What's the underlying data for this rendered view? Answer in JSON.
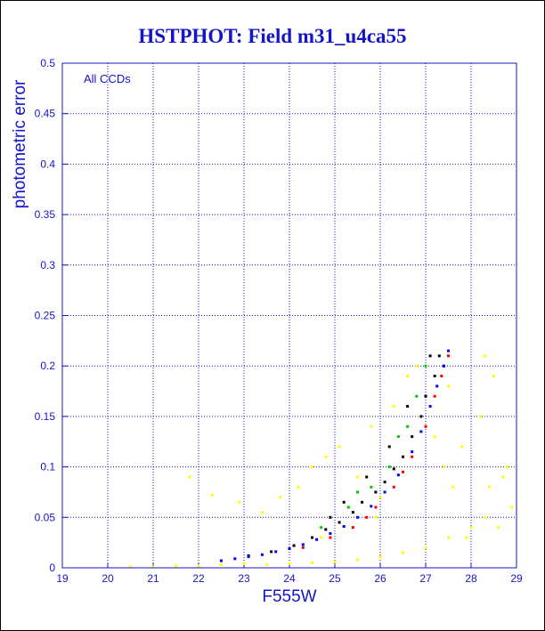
{
  "chart_data": {
    "type": "scatter",
    "title": "HSTPHOT: Field m31_u4ca55",
    "xlabel": "F555W",
    "ylabel": "photometric error",
    "annotation": "All CCDs",
    "xlim": [
      19,
      29
    ],
    "ylim": [
      0,
      0.5
    ],
    "grid": true,
    "x_ticks": [
      "19",
      "20",
      "21",
      "22",
      "23",
      "24",
      "25",
      "26",
      "27",
      "28",
      "29"
    ],
    "y_ticks": [
      "0",
      "0.05",
      "0.1",
      "0.15",
      "0.2",
      "0.25",
      "0.3",
      "0.35",
      "0.4",
      "0.45",
      "0.5"
    ],
    "series": [
      {
        "color": "#ffff00",
        "points": [
          [
            21.8,
            0.09
          ],
          [
            22.3,
            0.072
          ],
          [
            22.9,
            0.065
          ],
          [
            23.4,
            0.055
          ],
          [
            23.8,
            0.07
          ],
          [
            24.2,
            0.08
          ],
          [
            24.5,
            0.1
          ],
          [
            24.8,
            0.11
          ],
          [
            25.1,
            0.12
          ],
          [
            25.3,
            0.06
          ],
          [
            25.5,
            0.09
          ],
          [
            25.8,
            0.14
          ],
          [
            26.0,
            0.07
          ],
          [
            26.3,
            0.16
          ],
          [
            26.6,
            0.19
          ],
          [
            26.8,
            0.2
          ],
          [
            27.2,
            0.13
          ],
          [
            27.5,
            0.18
          ],
          [
            28.3,
            0.21
          ],
          [
            28.5,
            0.19
          ],
          [
            28.2,
            0.15
          ],
          [
            28.7,
            0.09
          ],
          [
            28.9,
            0.06
          ],
          [
            28.6,
            0.04
          ],
          [
            27.9,
            0.03
          ],
          [
            27.6,
            0.08
          ],
          [
            27.4,
            0.1
          ],
          [
            23.0,
            0.004
          ],
          [
            23.5,
            0.003
          ],
          [
            24.0,
            0.004
          ],
          [
            24.5,
            0.005
          ],
          [
            25.0,
            0.006
          ],
          [
            25.5,
            0.008
          ],
          [
            26.0,
            0.011
          ],
          [
            26.5,
            0.015
          ],
          [
            27.0,
            0.02
          ],
          [
            27.5,
            0.03
          ],
          [
            28.0,
            0.04
          ],
          [
            28.3,
            0.05
          ],
          [
            22.0,
            0.002
          ],
          [
            22.5,
            0.003
          ],
          [
            21.5,
            0.002
          ],
          [
            20.5,
            0.001
          ],
          [
            21.0,
            0.001
          ],
          [
            24.7,
            0.03
          ],
          [
            25.9,
            0.05
          ],
          [
            26.9,
            0.15
          ],
          [
            27.8,
            0.12
          ],
          [
            28.4,
            0.08
          ],
          [
            28.8,
            0.1
          ]
        ]
      },
      {
        "color": "#000000",
        "points": [
          [
            23.1,
            0.012
          ],
          [
            23.6,
            0.016
          ],
          [
            24.1,
            0.022
          ],
          [
            24.5,
            0.03
          ],
          [
            24.8,
            0.038
          ],
          [
            25.1,
            0.045
          ],
          [
            25.4,
            0.055
          ],
          [
            25.6,
            0.065
          ],
          [
            25.9,
            0.075
          ],
          [
            26.1,
            0.085
          ],
          [
            26.3,
            0.098
          ],
          [
            26.5,
            0.11
          ],
          [
            26.7,
            0.13
          ],
          [
            26.9,
            0.15
          ],
          [
            27.0,
            0.17
          ],
          [
            27.2,
            0.19
          ],
          [
            27.3,
            0.21
          ],
          [
            27.4,
            0.2
          ],
          [
            26.2,
            0.12
          ],
          [
            26.6,
            0.16
          ],
          [
            25.7,
            0.09
          ],
          [
            25.2,
            0.065
          ],
          [
            24.9,
            0.05
          ],
          [
            27.1,
            0.21
          ]
        ]
      },
      {
        "color": "#00c800",
        "points": [
          [
            24.7,
            0.04
          ],
          [
            25.3,
            0.06
          ],
          [
            25.8,
            0.08
          ],
          [
            26.2,
            0.1
          ],
          [
            26.6,
            0.14
          ],
          [
            26.8,
            0.17
          ],
          [
            27.0,
            0.2
          ],
          [
            25.5,
            0.075
          ],
          [
            26.4,
            0.13
          ]
        ]
      },
      {
        "color": "#ff0000",
        "points": [
          [
            24.3,
            0.02
          ],
          [
            24.9,
            0.03
          ],
          [
            25.4,
            0.04
          ],
          [
            25.9,
            0.06
          ],
          [
            26.3,
            0.08
          ],
          [
            26.7,
            0.11
          ],
          [
            27.0,
            0.14
          ],
          [
            27.2,
            0.17
          ],
          [
            27.35,
            0.19
          ],
          [
            27.5,
            0.21
          ],
          [
            26.5,
            0.095
          ],
          [
            25.7,
            0.05
          ]
        ]
      },
      {
        "color": "#0000ff",
        "points": [
          [
            22.5,
            0.007
          ],
          [
            22.8,
            0.009
          ],
          [
            23.1,
            0.011
          ],
          [
            23.4,
            0.013
          ],
          [
            23.7,
            0.016
          ],
          [
            24.0,
            0.019
          ],
          [
            24.3,
            0.023
          ],
          [
            24.6,
            0.028
          ],
          [
            24.9,
            0.034
          ],
          [
            25.2,
            0.041
          ],
          [
            25.5,
            0.05
          ],
          [
            25.8,
            0.061
          ],
          [
            26.1,
            0.075
          ],
          [
            26.4,
            0.092
          ],
          [
            26.7,
            0.115
          ],
          [
            26.9,
            0.135
          ],
          [
            27.1,
            0.16
          ],
          [
            27.25,
            0.18
          ],
          [
            27.4,
            0.2
          ],
          [
            27.5,
            0.215
          ]
        ]
      }
    ]
  }
}
